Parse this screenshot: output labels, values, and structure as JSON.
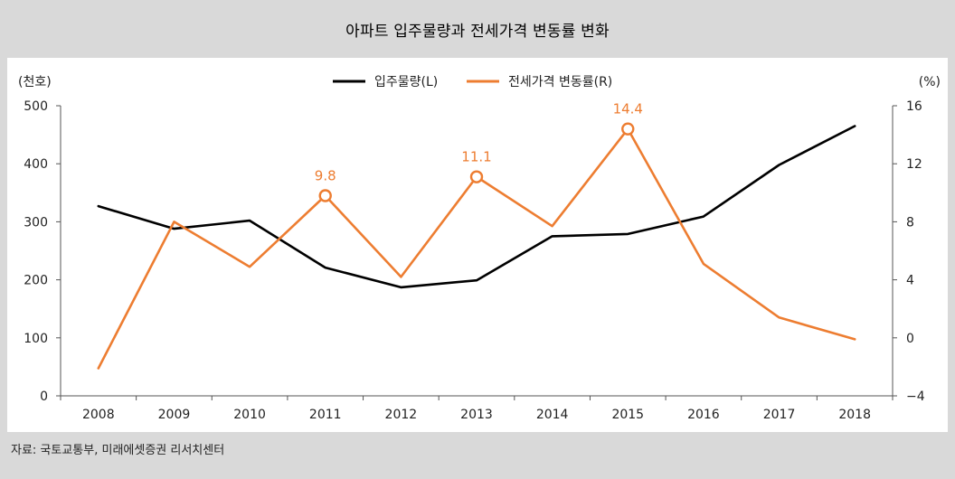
{
  "title": "아파트 입주물량과 전세가격 변동률 변화",
  "source": "자료: 국토교통부, 미래에셋증권 리서치센터",
  "chart_data": {
    "type": "line",
    "categories": [
      "2008",
      "2009",
      "2010",
      "2011",
      "2012",
      "2013",
      "2014",
      "2015",
      "2016",
      "2017",
      "2018"
    ],
    "left_unit": "(천호)",
    "right_unit": "(%)",
    "ylim_left": [
      0,
      500
    ],
    "yticks_left": [
      0,
      100,
      200,
      300,
      400,
      500
    ],
    "ylim_right": [
      -4,
      16
    ],
    "yticks_right": [
      "-4",
      "0",
      "4",
      "8",
      "12",
      "16"
    ],
    "legend_position": "top-center",
    "grid": false,
    "series": [
      {
        "name": "입주물량(L)",
        "axis": "left",
        "color": "#000000",
        "values": [
          327,
          288,
          302,
          221,
          187,
          199,
          275,
          279,
          309,
          398,
          465
        ]
      },
      {
        "name": "전세가격 변동률(R)",
        "axis": "right",
        "color": "#ed7d31",
        "values": [
          -2.1,
          8.0,
          4.9,
          9.8,
          4.2,
          11.1,
          7.7,
          14.4,
          5.1,
          1.4,
          -0.1
        ],
        "annotations": [
          {
            "index": 3,
            "label": "9.8"
          },
          {
            "index": 5,
            "label": "11.1"
          },
          {
            "index": 7,
            "label": "14.4"
          }
        ]
      }
    ]
  }
}
